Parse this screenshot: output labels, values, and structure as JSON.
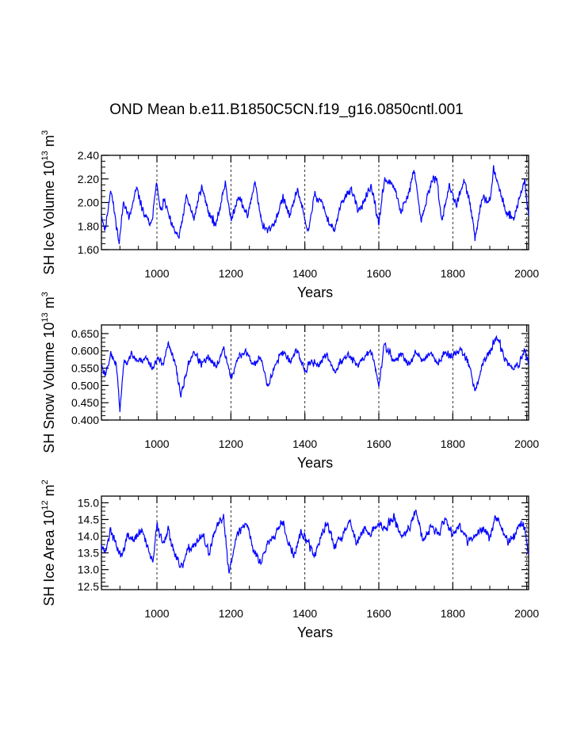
{
  "title": "OND Mean b.e11.B1850C5CN.f19_g16.0850cntl.001",
  "series_color": "#0000ff",
  "chart_data": [
    {
      "type": "line",
      "title": "OND Mean b.e11.B1850C5CN.f19_g16.0850cntl.001",
      "xlabel": "Years",
      "ylabel": "SH Ice Volume 10",
      "ylabel_sup1": "13",
      "ylabel_unit": " m",
      "ylabel_sup2": "3",
      "xlim": [
        850,
        2005
      ],
      "ylim": [
        1.6,
        2.4
      ],
      "xticks": [
        1000,
        1200,
        1400,
        1600,
        1800,
        2000
      ],
      "yticks": [
        1.6,
        1.8,
        2.0,
        2.2,
        2.4
      ],
      "ytick_labels": [
        "1.60",
        "1.80",
        "2.00",
        "2.20",
        "2.40"
      ],
      "series": [
        {
          "name": "SH Ice Volume",
          "x_step": 1,
          "y_keypoints": [
            [
              850,
              1.9
            ],
            [
              860,
              1.76
            ],
            [
              875,
              2.12
            ],
            [
              885,
              1.92
            ],
            [
              898,
              1.65
            ],
            [
              910,
              2.02
            ],
            [
              925,
              1.86
            ],
            [
              945,
              2.12
            ],
            [
              965,
              1.9
            ],
            [
              985,
              1.8
            ],
            [
              998,
              2.18
            ],
            [
              1010,
              1.92
            ],
            [
              1020,
              2.02
            ],
            [
              1040,
              1.8
            ],
            [
              1060,
              1.7
            ],
            [
              1080,
              2.05
            ],
            [
              1100,
              1.86
            ],
            [
              1120,
              2.14
            ],
            [
              1140,
              1.92
            ],
            [
              1160,
              1.8
            ],
            [
              1185,
              2.18
            ],
            [
              1200,
              1.84
            ],
            [
              1220,
              2.06
            ],
            [
              1245,
              1.88
            ],
            [
              1265,
              2.18
            ],
            [
              1285,
              1.8
            ],
            [
              1300,
              1.76
            ],
            [
              1320,
              1.84
            ],
            [
              1340,
              2.04
            ],
            [
              1360,
              1.88
            ],
            [
              1380,
              2.12
            ],
            [
              1400,
              1.86
            ],
            [
              1410,
              1.74
            ],
            [
              1425,
              2.06
            ],
            [
              1445,
              2.02
            ],
            [
              1460,
              1.86
            ],
            [
              1480,
              1.76
            ],
            [
              1500,
              2.0
            ],
            [
              1525,
              2.12
            ],
            [
              1545,
              1.92
            ],
            [
              1560,
              2.02
            ],
            [
              1580,
              2.12
            ],
            [
              1600,
              1.82
            ],
            [
              1615,
              2.2
            ],
            [
              1640,
              2.14
            ],
            [
              1660,
              1.92
            ],
            [
              1680,
              2.06
            ],
            [
              1695,
              2.28
            ],
            [
              1715,
              1.84
            ],
            [
              1735,
              2.1
            ],
            [
              1755,
              2.24
            ],
            [
              1770,
              1.84
            ],
            [
              1790,
              2.14
            ],
            [
              1810,
              1.98
            ],
            [
              1830,
              2.18
            ],
            [
              1845,
              2.02
            ],
            [
              1860,
              1.7
            ],
            [
              1880,
              2.06
            ],
            [
              1900,
              2.0
            ],
            [
              1910,
              2.28
            ],
            [
              1925,
              2.12
            ],
            [
              1945,
              1.92
            ],
            [
              1965,
              1.86
            ],
            [
              1980,
              2.04
            ],
            [
              1995,
              2.18
            ],
            [
              2005,
              1.88
            ]
          ],
          "noise": 0.07,
          "seed": 11
        }
      ]
    },
    {
      "type": "line",
      "xlabel": "Years",
      "ylabel": "SH Snow Volume 10",
      "ylabel_sup1": "13",
      "ylabel_unit": " m",
      "ylabel_sup2": "3",
      "xlim": [
        850,
        2005
      ],
      "ylim": [
        0.4,
        0.675
      ],
      "xticks": [
        1000,
        1200,
        1400,
        1600,
        1800,
        2000
      ],
      "yticks": [
        0.4,
        0.45,
        0.5,
        0.55,
        0.6,
        0.65
      ],
      "ytick_labels": [
        "0.400",
        "0.450",
        "0.500",
        "0.550",
        "0.600",
        "0.650"
      ],
      "series": [
        {
          "name": "SH Snow Volume",
          "x_step": 1,
          "y_keypoints": [
            [
              850,
              0.56
            ],
            [
              860,
              0.53
            ],
            [
              875,
              0.59
            ],
            [
              890,
              0.56
            ],
            [
              900,
              0.43
            ],
            [
              910,
              0.56
            ],
            [
              930,
              0.59
            ],
            [
              950,
              0.57
            ],
            [
              970,
              0.58
            ],
            [
              990,
              0.55
            ],
            [
              1000,
              0.58
            ],
            [
              1015,
              0.56
            ],
            [
              1030,
              0.62
            ],
            [
              1050,
              0.56
            ],
            [
              1065,
              0.47
            ],
            [
              1085,
              0.56
            ],
            [
              1100,
              0.6
            ],
            [
              1120,
              0.56
            ],
            [
              1140,
              0.58
            ],
            [
              1160,
              0.55
            ],
            [
              1180,
              0.61
            ],
            [
              1200,
              0.52
            ],
            [
              1220,
              0.58
            ],
            [
              1240,
              0.6
            ],
            [
              1260,
              0.56
            ],
            [
              1280,
              0.58
            ],
            [
              1300,
              0.5
            ],
            [
              1320,
              0.56
            ],
            [
              1340,
              0.6
            ],
            [
              1360,
              0.57
            ],
            [
              1380,
              0.6
            ],
            [
              1400,
              0.54
            ],
            [
              1420,
              0.57
            ],
            [
              1440,
              0.56
            ],
            [
              1460,
              0.59
            ],
            [
              1480,
              0.54
            ],
            [
              1500,
              0.57
            ],
            [
              1520,
              0.59
            ],
            [
              1540,
              0.56
            ],
            [
              1560,
              0.58
            ],
            [
              1580,
              0.6
            ],
            [
              1600,
              0.5
            ],
            [
              1615,
              0.62
            ],
            [
              1640,
              0.57
            ],
            [
              1660,
              0.59
            ],
            [
              1680,
              0.56
            ],
            [
              1700,
              0.6
            ],
            [
              1720,
              0.57
            ],
            [
              1740,
              0.6
            ],
            [
              1760,
              0.56
            ],
            [
              1780,
              0.6
            ],
            [
              1800,
              0.58
            ],
            [
              1820,
              0.61
            ],
            [
              1845,
              0.56
            ],
            [
              1860,
              0.48
            ],
            [
              1880,
              0.56
            ],
            [
              1900,
              0.6
            ],
            [
              1920,
              0.64
            ],
            [
              1940,
              0.58
            ],
            [
              1960,
              0.55
            ],
            [
              1980,
              0.56
            ],
            [
              1995,
              0.6
            ],
            [
              2005,
              0.56
            ]
          ],
          "noise": 0.022,
          "seed": 23
        }
      ]
    },
    {
      "type": "line",
      "xlabel": "Years",
      "ylabel": "SH Ice Area 10",
      "ylabel_sup1": "12",
      "ylabel_unit": " m",
      "ylabel_sup2": "2",
      "xlim": [
        850,
        2005
      ],
      "ylim": [
        12.4,
        15.2
      ],
      "xticks": [
        1000,
        1200,
        1400,
        1600,
        1800,
        2000
      ],
      "yticks": [
        12.5,
        13.0,
        13.5,
        14.0,
        14.5,
        15.0
      ],
      "ytick_labels": [
        "12.5",
        "13.0",
        "13.5",
        "14.0",
        "14.5",
        "15.0"
      ],
      "series": [
        {
          "name": "SH Ice Area",
          "x_step": 1,
          "y_keypoints": [
            [
              850,
              13.8
            ],
            [
              860,
              13.5
            ],
            [
              875,
              14.2
            ],
            [
              890,
              13.7
            ],
            [
              905,
              13.4
            ],
            [
              920,
              14.0
            ],
            [
              940,
              13.9
            ],
            [
              960,
              14.2
            ],
            [
              975,
              13.6
            ],
            [
              990,
              13.2
            ],
            [
              1000,
              14.4
            ],
            [
              1015,
              13.8
            ],
            [
              1030,
              14.2
            ],
            [
              1050,
              13.4
            ],
            [
              1065,
              13.0
            ],
            [
              1085,
              13.6
            ],
            [
              1105,
              13.8
            ],
            [
              1125,
              14.0
            ],
            [
              1140,
              13.5
            ],
            [
              1160,
              14.2
            ],
            [
              1180,
              14.6
            ],
            [
              1195,
              12.9
            ],
            [
              1210,
              13.8
            ],
            [
              1225,
              14.2
            ],
            [
              1245,
              14.4
            ],
            [
              1260,
              13.6
            ],
            [
              1280,
              13.2
            ],
            [
              1300,
              13.8
            ],
            [
              1320,
              14.1
            ],
            [
              1340,
              14.5
            ],
            [
              1355,
              13.8
            ],
            [
              1370,
              13.4
            ],
            [
              1390,
              14.1
            ],
            [
              1410,
              13.8
            ],
            [
              1425,
              13.4
            ],
            [
              1445,
              14.0
            ],
            [
              1460,
              14.4
            ],
            [
              1480,
              13.7
            ],
            [
              1500,
              14.0
            ],
            [
              1520,
              14.5
            ],
            [
              1540,
              13.8
            ],
            [
              1560,
              14.2
            ],
            [
              1580,
              14.1
            ],
            [
              1600,
              14.4
            ],
            [
              1620,
              14.2
            ],
            [
              1640,
              14.6
            ],
            [
              1660,
              14.0
            ],
            [
              1680,
              14.2
            ],
            [
              1700,
              14.8
            ],
            [
              1720,
              13.8
            ],
            [
              1740,
              14.3
            ],
            [
              1760,
              14.1
            ],
            [
              1780,
              14.5
            ],
            [
              1800,
              14.1
            ],
            [
              1820,
              14.3
            ],
            [
              1840,
              13.9
            ],
            [
              1860,
              14.0
            ],
            [
              1880,
              14.2
            ],
            [
              1900,
              14.0
            ],
            [
              1915,
              14.6
            ],
            [
              1930,
              14.3
            ],
            [
              1950,
              13.8
            ],
            [
              1970,
              14.1
            ],
            [
              1985,
              14.4
            ],
            [
              1995,
              14.2
            ],
            [
              2005,
              13.4
            ]
          ],
          "noise": 0.28,
          "seed": 37
        }
      ]
    }
  ]
}
